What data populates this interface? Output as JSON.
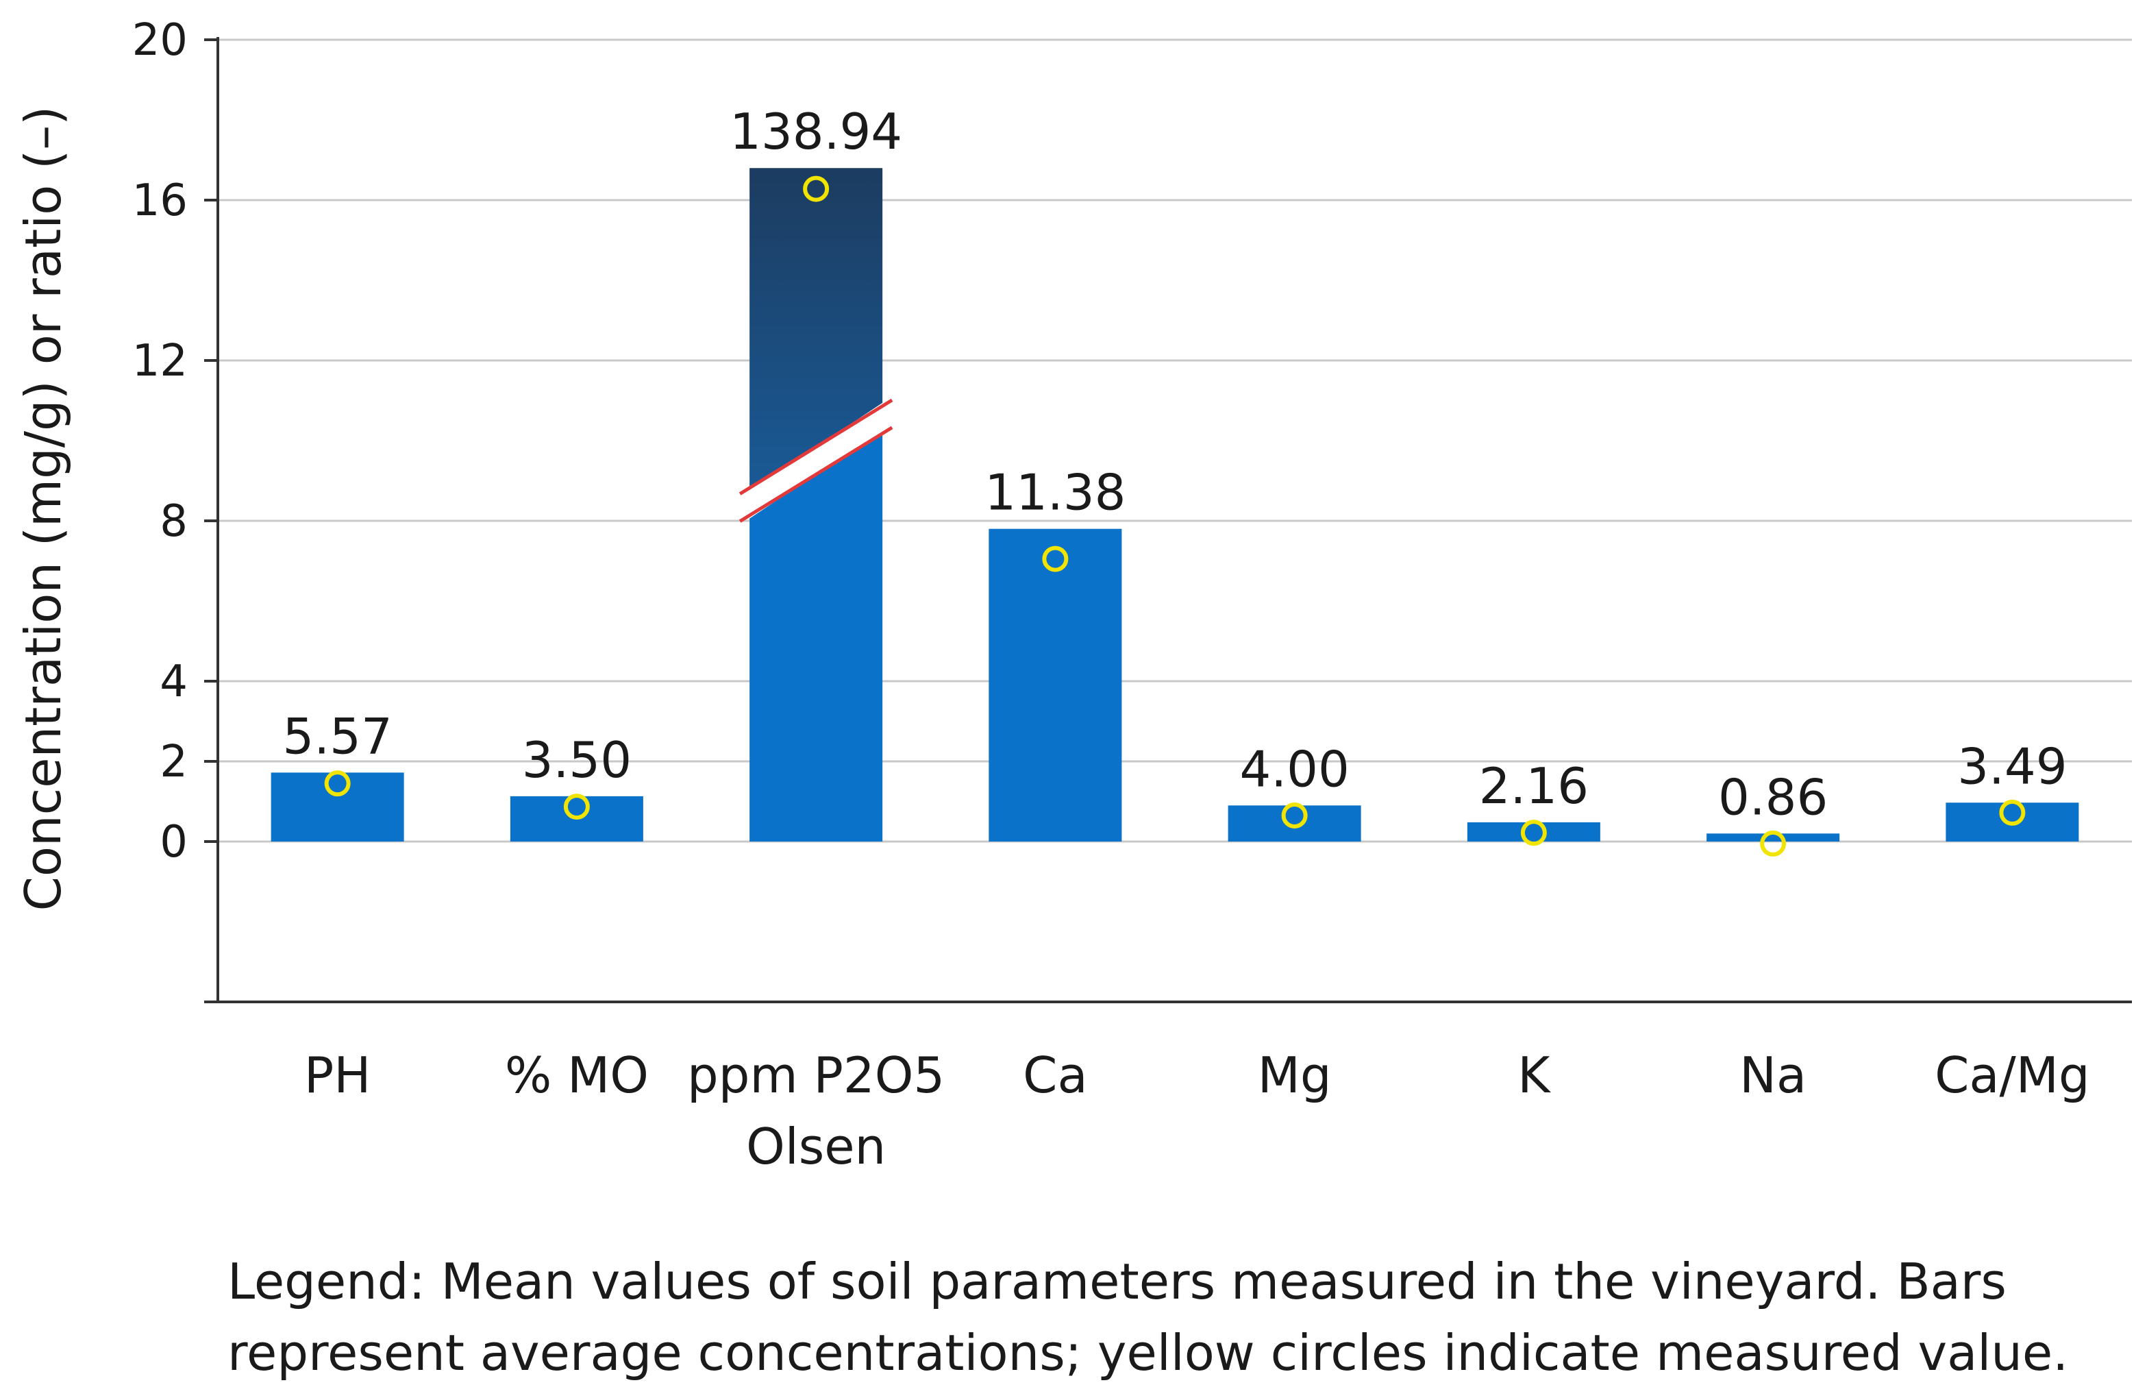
{
  "chart_data": {
    "type": "bar",
    "categories": [
      {
        "label_lines": [
          "PH"
        ],
        "bar_value": 1.72,
        "label": "5.57",
        "marker": 1.45
      },
      {
        "label_lines": [
          "% MO"
        ],
        "bar_value": 1.13,
        "label": "3.50",
        "marker": 0.87
      },
      {
        "label_lines": [
          "ppm P2O5",
          "Olsen"
        ],
        "bar_value": 16.8,
        "label": "138.94",
        "marker": 16.28,
        "broken_axis": true
      },
      {
        "label_lines": [
          "Ca"
        ],
        "bar_value": 7.8,
        "label": "11.38",
        "marker": 7.05
      },
      {
        "label_lines": [
          "Mg"
        ],
        "bar_value": 0.9,
        "label": "4.00",
        "marker": 0.65
      },
      {
        "label_lines": [
          "K"
        ],
        "bar_value": 0.48,
        "label": "2.16",
        "marker": 0.22
      },
      {
        "label_lines": [
          "Na"
        ],
        "bar_value": 0.2,
        "label": "0.86",
        "marker": -0.05
      },
      {
        "label_lines": [
          "Ca/Mg"
        ],
        "bar_value": 0.97,
        "label": "3.49",
        "marker": 0.72
      }
    ],
    "ylabel": "Concentration (mg/g) or ratio (–)",
    "yticks": [
      0,
      2,
      4,
      8,
      12,
      16,
      20
    ],
    "ylim": [
      -4,
      20
    ],
    "grid": true,
    "colors": {
      "bar": "#0a72c8",
      "bar_dark_top": "#1c3c60",
      "bar_dark_bottom": "#1a5a96",
      "marker": "#f0e400",
      "break_line": "#e23a3a",
      "grid": "#c8c8c8",
      "axis": "#333333"
    }
  },
  "legend": {
    "line1": "Legend: Mean values of soil parameters measured in the vineyard. Bars",
    "line2": "represent average concentrations; yellow circles indicate measured value."
  }
}
